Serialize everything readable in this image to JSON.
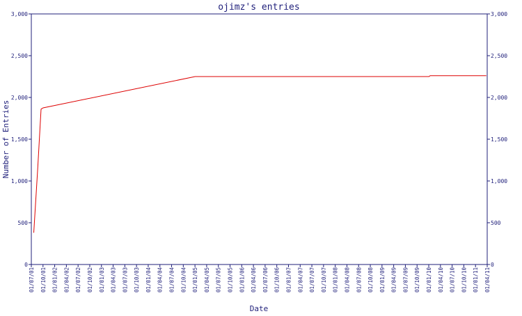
{
  "chart_data": {
    "type": "line",
    "title": "ojimz's entries",
    "xlabel": "Date",
    "ylabel": "Number of Entries",
    "ylim": [
      0,
      3000
    ],
    "yticks": [
      0,
      500,
      1000,
      1500,
      2000,
      2500,
      3000
    ],
    "ytick_labels": [
      "0",
      "500",
      "1,000",
      "1,500",
      "2,000",
      "2,500",
      "3,000"
    ],
    "right_axis": true,
    "grid": false,
    "x_tick_labels": [
      "01/07/01",
      "01/10/01",
      "01/01/02",
      "01/04/02",
      "01/07/02",
      "01/10/02",
      "01/01/03",
      "01/04/03",
      "01/07/03",
      "01/10/03",
      "01/01/04",
      "01/04/04",
      "01/07/04",
      "01/10/04",
      "01/01/05",
      "01/04/05",
      "01/07/05",
      "01/10/05",
      "01/01/06",
      "01/04/06",
      "01/07/06",
      "01/10/06",
      "01/01/07",
      "01/04/07",
      "01/07/07",
      "01/10/07",
      "01/01/08",
      "01/04/08",
      "01/07/08",
      "01/10/08",
      "01/01/09",
      "01/04/09",
      "01/07/09",
      "01/10/09",
      "01/01/10",
      "01/04/10",
      "01/07/10",
      "01/10/10",
      "01/01/11",
      "01/04/11"
    ],
    "series": [
      {
        "color": "#dd0000",
        "points": [
          {
            "x": "2001-07-20",
            "y": 380
          },
          {
            "x": "2001-08-20",
            "y": 1150
          },
          {
            "x": "2001-09-15",
            "y": 1860
          },
          {
            "x": "2001-10-01",
            "y": 1875
          },
          {
            "x": "2005-01-01",
            "y": 2250
          },
          {
            "x": "2010-01-01",
            "y": 2250
          },
          {
            "x": "2010-01-10",
            "y": 2260
          },
          {
            "x": "2011-03-25",
            "y": 2260
          }
        ]
      }
    ]
  }
}
